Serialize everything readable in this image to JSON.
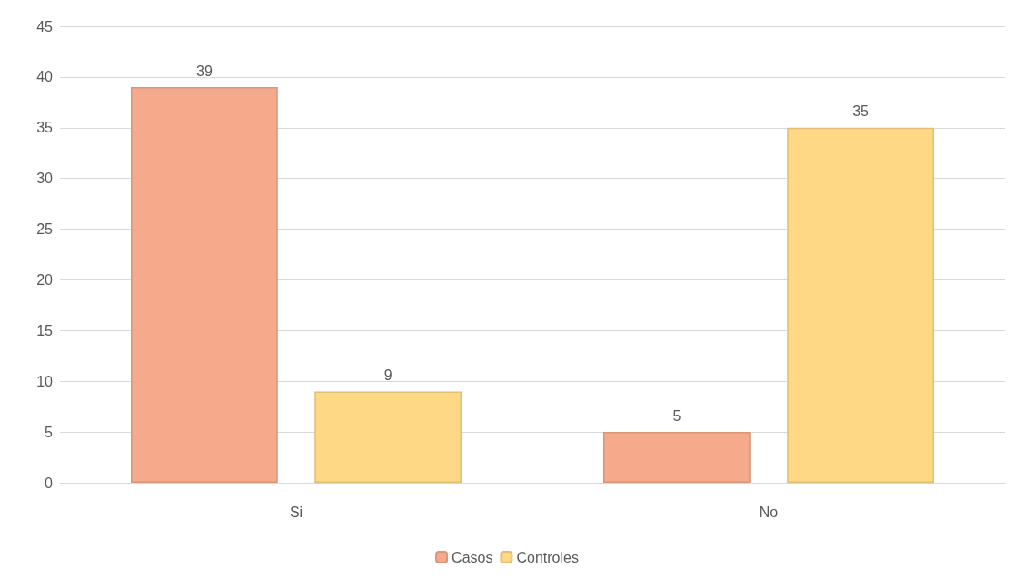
{
  "chart_data": {
    "type": "bar",
    "categories": [
      "Si",
      "No"
    ],
    "series": [
      {
        "name": "Casos",
        "color": "#f5aa8c",
        "values": [
          39,
          5
        ]
      },
      {
        "name": "Controles",
        "color": "#fed884",
        "values": [
          9,
          35
        ]
      }
    ],
    "ylim": [
      0,
      45
    ],
    "yticks": [
      0,
      5,
      10,
      15,
      20,
      25,
      30,
      35,
      40,
      45
    ],
    "grid": "y",
    "legend": "bottom",
    "data_labels": true
  }
}
